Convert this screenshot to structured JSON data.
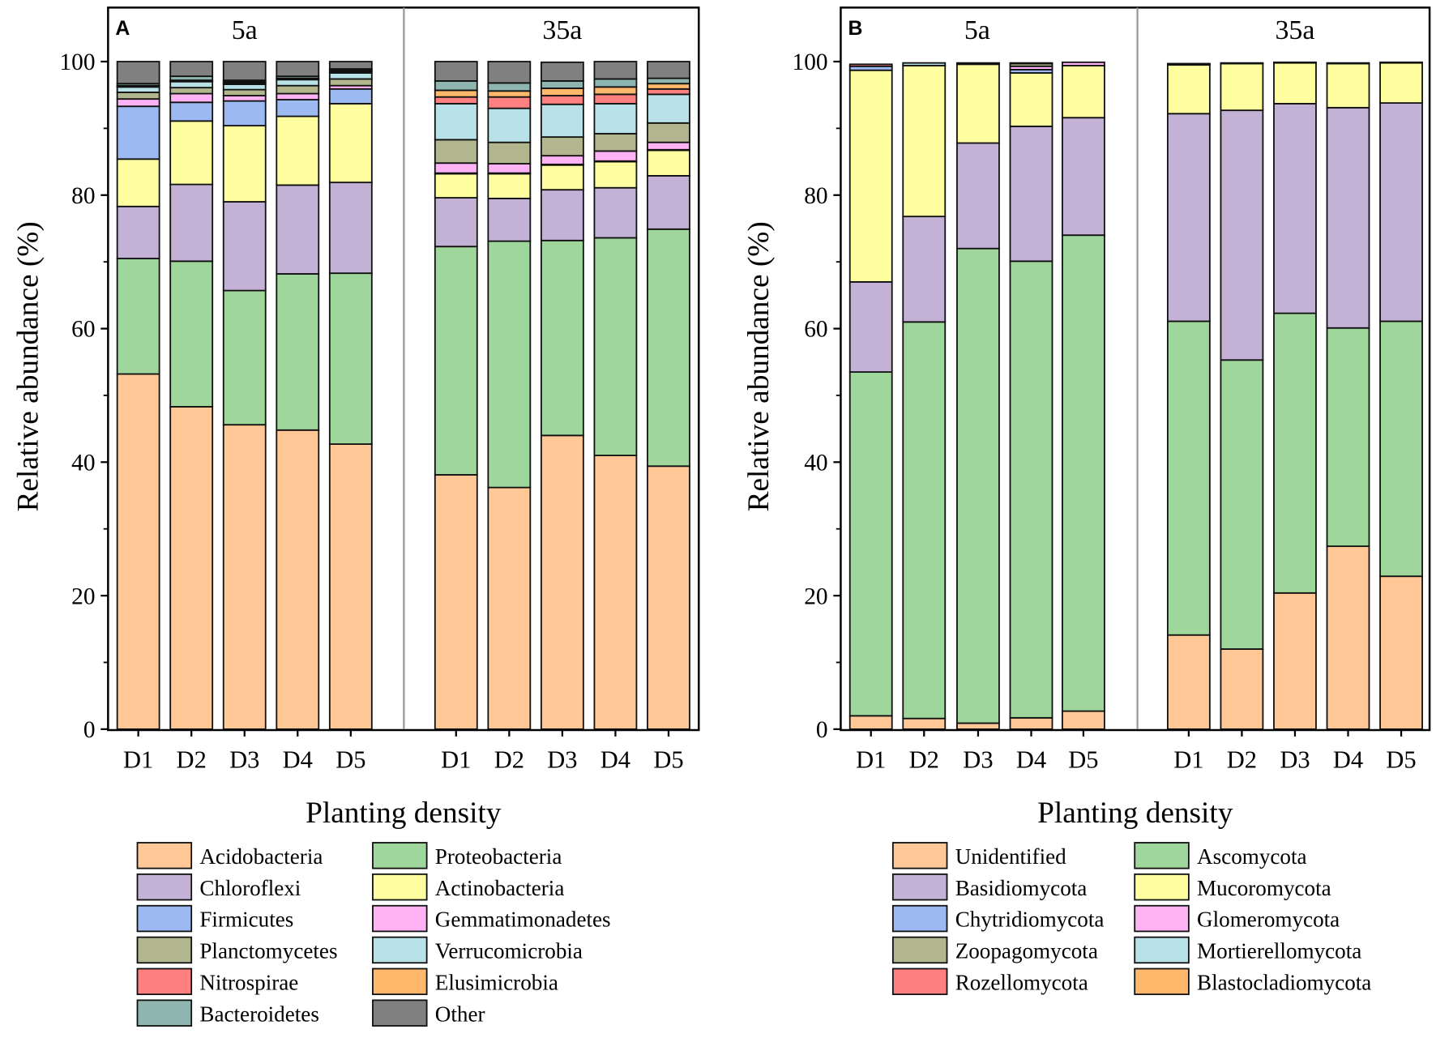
{
  "chart_data": [
    {
      "type": "bar",
      "stacked": true,
      "panel_label": "A",
      "groups": [
        "5a",
        "35a"
      ],
      "categories": [
        "D1",
        "D2",
        "D3",
        "D4",
        "D5"
      ],
      "xlabel": "Planting density",
      "ylabel": "Relative abundance (%)",
      "ylim": [
        0,
        100
      ],
      "yticks": [
        "0",
        "20",
        "40",
        "60",
        "80",
        "100"
      ],
      "legend_position": "bottom",
      "series": [
        {
          "name": "Acidobacteria",
          "color": "#FFC896",
          "values": {
            "5a": [
              53.2,
              48.3,
              45.6,
              44.8,
              42.7
            ],
            "35a": [
              38.1,
              36.2,
              44.0,
              41.0,
              39.4
            ]
          }
        },
        {
          "name": "Proteobacteria",
          "color": "#9ED69B",
          "values": {
            "5a": [
              17.3,
              21.8,
              20.1,
              23.4,
              25.6
            ],
            "35a": [
              34.2,
              36.9,
              29.2,
              32.6,
              35.5
            ]
          }
        },
        {
          "name": "Chloroflexi",
          "color": "#C3B1D6",
          "values": {
            "5a": [
              7.8,
              11.5,
              13.3,
              13.3,
              13.6
            ],
            "35a": [
              7.3,
              6.4,
              7.6,
              7.5,
              8.0
            ]
          }
        },
        {
          "name": "Actinobacteria",
          "color": "#FFFFA0",
          "values": {
            "5a": [
              7.1,
              9.5,
              11.4,
              10.3,
              11.8
            ],
            "35a": [
              3.6,
              3.7,
              3.7,
              3.9,
              3.8
            ]
          }
        },
        {
          "name": "Firmicutes",
          "color": "#9CB9F2",
          "values": {
            "5a": [
              7.9,
              2.8,
              3.7,
              2.5,
              2.2
            ],
            "35a": [
              0.1,
              0.1,
              0.1,
              0.1,
              0.1
            ]
          }
        },
        {
          "name": "Gemmatimonadetes",
          "color": "#FFB3F5",
          "values": {
            "5a": [
              1.1,
              1.3,
              0.8,
              0.9,
              0.5
            ],
            "35a": [
              1.5,
              1.4,
              1.3,
              1.5,
              1.1
            ]
          }
        },
        {
          "name": "Planctomycetes",
          "color": "#B2B68E",
          "values": {
            "5a": [
              1.0,
              0.9,
              0.9,
              1.2,
              1.0
            ],
            "35a": [
              3.5,
              3.2,
              2.8,
              2.6,
              2.9
            ]
          }
        },
        {
          "name": "Verrucomicrobia",
          "color": "#B8E2E8",
          "values": {
            "5a": [
              0.8,
              0.9,
              0.8,
              0.9,
              0.9
            ],
            "35a": [
              5.4,
              5.1,
              4.9,
              4.5,
              4.3
            ]
          }
        },
        {
          "name": "Nitrospirae",
          "color": "#FF8080",
          "values": {
            "5a": [
              0.1,
              0.1,
              0.2,
              0.1,
              0.2
            ],
            "35a": [
              1.0,
              1.7,
              1.3,
              1.4,
              0.8
            ]
          }
        },
        {
          "name": "Elusimicrobia",
          "color": "#FFB86C",
          "values": {
            "5a": [
              0.1,
              0.1,
              0.2,
              0.1,
              0.2
            ],
            "35a": [
              1.0,
              0.9,
              1.1,
              1.1,
              0.8
            ]
          }
        },
        {
          "name": "Bacteroidetes",
          "color": "#8FB5B0",
          "values": {
            "5a": [
              0.3,
              0.6,
              0.2,
              0.3,
              0.2
            ],
            "35a": [
              1.4,
              1.2,
              1.1,
              1.2,
              0.8
            ]
          }
        },
        {
          "name": "Other",
          "color": "#808080",
          "values": {
            "5a": [
              3.3,
              2.2,
              2.8,
              2.2,
              1.1
            ],
            "35a": [
              2.9,
              3.2,
              2.8,
              2.6,
              2.5
            ]
          }
        }
      ]
    },
    {
      "type": "bar",
      "stacked": true,
      "panel_label": "B",
      "groups": [
        "5a",
        "35a"
      ],
      "categories": [
        "D1",
        "D2",
        "D3",
        "D4",
        "D5"
      ],
      "xlabel": "Planting density",
      "ylabel": "Relative abundance (%)",
      "ylim": [
        0,
        100
      ],
      "yticks": [
        "0",
        "20",
        "40",
        "60",
        "80",
        "100"
      ],
      "legend_position": "bottom",
      "series": [
        {
          "name": "Unidentified",
          "color": "#FFC896",
          "values": {
            "5a": [
              2.0,
              1.6,
              0.9,
              1.7,
              2.7
            ],
            "35a": [
              14.1,
              12.0,
              20.4,
              27.4,
              22.9
            ]
          }
        },
        {
          "name": "Ascomycota",
          "color": "#9ED69B",
          "values": {
            "5a": [
              51.5,
              59.4,
              71.1,
              68.4,
              71.3
            ],
            "35a": [
              47.0,
              43.3,
              41.9,
              32.7,
              38.2
            ]
          }
        },
        {
          "name": "Basidiomycota",
          "color": "#C3B1D6",
          "values": {
            "5a": [
              13.5,
              15.8,
              15.8,
              20.2,
              17.6
            ],
            "35a": [
              31.1,
              37.4,
              31.4,
              33.0,
              32.7
            ]
          }
        },
        {
          "name": "Mucoromycota",
          "color": "#FFFFA0",
          "values": {
            "5a": [
              31.7,
              22.6,
              11.8,
              8.0,
              7.8
            ],
            "35a": [
              7.3,
              7.0,
              6.1,
              6.6,
              6.0
            ]
          }
        },
        {
          "name": "Chytridiomycota",
          "color": "#9CB9F2",
          "values": {
            "5a": [
              0.6,
              0.0,
              0.1,
              0.5,
              0.0
            ],
            "35a": [
              0.1,
              0.0,
              0.0,
              0.0,
              0.0
            ]
          }
        },
        {
          "name": "Glomeromycota",
          "color": "#FFB3F5",
          "values": {
            "5a": [
              0.0,
              0.0,
              0.0,
              0.5,
              0.5
            ],
            "35a": [
              0.0,
              0.0,
              0.0,
              0.0,
              0.0
            ]
          }
        },
        {
          "name": "Zoopagomycota",
          "color": "#B2B68E",
          "values": {
            "5a": [
              0.0,
              0.0,
              0.0,
              0.4,
              0.0
            ],
            "35a": [
              0.0,
              0.0,
              0.0,
              0.0,
              0.0
            ]
          }
        },
        {
          "name": "Mortierellomycota",
          "color": "#B8E2E8",
          "values": {
            "5a": [
              0.0,
              0.4,
              0.0,
              0.0,
              0.0
            ],
            "35a": [
              0.0,
              0.0,
              0.0,
              0.0,
              0.0
            ]
          }
        },
        {
          "name": "Rozellomycota",
          "color": "#FF8080",
          "values": {
            "5a": [
              0.3,
              0.0,
              0.1,
              0.1,
              0.0
            ],
            "35a": [
              0.1,
              0.1,
              0.1,
              0.1,
              0.1
            ]
          }
        },
        {
          "name": "Blastocladiomycota",
          "color": "#FFB86C",
          "values": {
            "5a": [
              0.0,
              0.0,
              0.0,
              0.0,
              0.0
            ],
            "35a": [
              0.0,
              0.0,
              0.0,
              0.0,
              0.0
            ]
          }
        }
      ]
    }
  ]
}
